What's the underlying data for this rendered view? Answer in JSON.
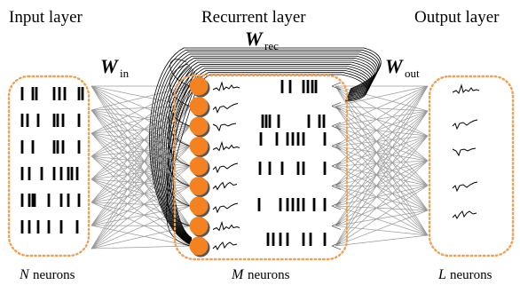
{
  "titles": {
    "input": "Input layer",
    "recurrent": "Recurrent layer",
    "output": "Output layer"
  },
  "weights": {
    "in": {
      "symbol": "W",
      "subscript": "in"
    },
    "rec": {
      "symbol": "W",
      "subscript": "rec"
    },
    "out": {
      "symbol": "W",
      "subscript": "out"
    }
  },
  "counts": {
    "input": {
      "symbol": "N",
      "unit": "neurons"
    },
    "recurrent": {
      "symbol": "M",
      "unit": "neurons"
    },
    "output": {
      "symbol": "L",
      "unit": "neurons"
    }
  },
  "colors": {
    "box_border": "#f0a050",
    "neuron_fill": "#f58220",
    "connection": "#9a9a9a",
    "recurrent_arc": "#000000"
  },
  "structure": {
    "input_rows": 6,
    "recurrent_neurons": 9,
    "output_rows": 5
  }
}
